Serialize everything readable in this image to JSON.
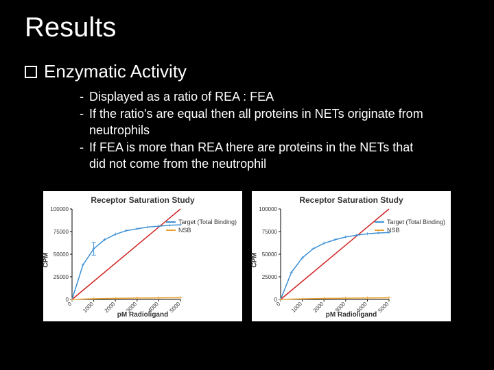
{
  "title": "Results",
  "subtitle": "Enzymatic Activity",
  "bullets": [
    "Displayed as a ratio of REA : FEA",
    "If the ratio's are equal then all proteins in NETs originate from neutrophils",
    "If FEA is more than REA there are proteins in the NETs that did not come from the neutrophil"
  ],
  "chart1": {
    "title": "Receptor Saturation Study",
    "ylabel": "CPM",
    "xlabel": "pM    Radioligand",
    "yticks": [
      "0",
      "25000",
      "50000",
      "75000",
      "100000"
    ],
    "xticks": [
      "0",
      "1000",
      "2000",
      "3000",
      "4000",
      "5000"
    ],
    "background": "#ffffff",
    "grid_color": "#000000",
    "series": [
      {
        "name": "Target (Total Binding)",
        "color": "#3b8fd4",
        "marker": "+",
        "points": [
          [
            0,
            0
          ],
          [
            500,
            38000
          ],
          [
            1000,
            56000
          ],
          [
            1500,
            66000
          ],
          [
            2000,
            72000
          ],
          [
            2500,
            76000
          ],
          [
            3000,
            78000
          ],
          [
            3500,
            80000
          ],
          [
            4000,
            81000
          ],
          [
            4500,
            82000
          ],
          [
            5000,
            82500
          ]
        ],
        "errorbar": {
          "x": 1000,
          "y": 56000,
          "err": 7000
        }
      },
      {
        "name": "NSB",
        "color": "#e8a030",
        "marker": "+",
        "points": [
          [
            0,
            0
          ],
          [
            1000,
            800
          ],
          [
            2000,
            1200
          ],
          [
            3000,
            1500
          ],
          [
            4000,
            1700
          ],
          [
            5000,
            1900
          ]
        ]
      }
    ],
    "diag_line": {
      "color": "#d02020",
      "from": [
        0,
        0
      ],
      "to": [
        5000,
        100000
      ]
    }
  },
  "chart2": {
    "title": "Receptor Saturation Study",
    "ylabel": "CPM",
    "xlabel": "pM    Radioligand",
    "yticks": [
      "0",
      "25000",
      "50000",
      "75000",
      "100000"
    ],
    "xticks": [
      "0",
      "1000",
      "2000",
      "3000",
      "4000",
      "5000"
    ],
    "background": "#ffffff",
    "grid_color": "#000000",
    "series": [
      {
        "name": "Target (Total Binding)",
        "color": "#3b8fd4",
        "marker": "+",
        "points": [
          [
            0,
            0
          ],
          [
            500,
            30000
          ],
          [
            1000,
            46000
          ],
          [
            1500,
            56000
          ],
          [
            2000,
            62000
          ],
          [
            2500,
            66000
          ],
          [
            3000,
            69000
          ],
          [
            3500,
            71000
          ],
          [
            4000,
            72500
          ],
          [
            4500,
            73500
          ],
          [
            5000,
            74000
          ]
        ]
      },
      {
        "name": "NSB",
        "color": "#e8a030",
        "marker": "+",
        "points": [
          [
            0,
            0
          ],
          [
            1000,
            700
          ],
          [
            2000,
            1100
          ],
          [
            3000,
            1400
          ],
          [
            4000,
            1600
          ],
          [
            5000,
            1800
          ]
        ]
      }
    ],
    "diag_line": {
      "color": "#d02020",
      "from": [
        0,
        0
      ],
      "to": [
        5000,
        100000
      ]
    }
  }
}
